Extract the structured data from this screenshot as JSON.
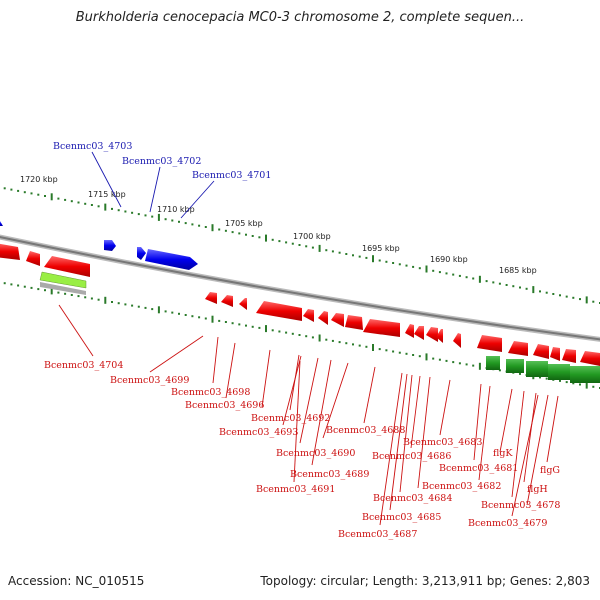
{
  "title": "Burkholderia cenocepacia MC0-3 chromosome 2, complete sequen...",
  "footer": {
    "accession": "Accession: NC_010515",
    "summary": "Topology: circular; Length: 3,213,911 bp; Genes: 2,803"
  },
  "colors": {
    "forward_gene": "#1a1aff",
    "reverse_gene": "#ff1a1a",
    "forward_label": "#1a1ab0",
    "reverse_label": "#cc1111",
    "rna_gene": "#2a9a2a",
    "highlight_gene": "#99ee44",
    "tick": "#2a7a2a",
    "backbone": "#888888"
  },
  "scale_labels": [
    "1720 kbp",
    "1715 kbp",
    "1710 kbp",
    "1705 kbp",
    "1700 kbp",
    "1695 kbp",
    "1690 kbp",
    "1685 kbp"
  ],
  "forward_labels": [
    "Bcenmc03_4703",
    "Bcenmc03_4702",
    "Bcenmc03_4701"
  ],
  "reverse_labels": [
    "Bcenmc03_4704",
    "Bcenmc03_4699",
    "Bcenmc03_4698",
    "Bcenmc03_4696",
    "Bcenmc03_4692",
    "Bcenmc03_4693",
    "Bcenmc03_4688",
    "Bcenmc03_4690",
    "Bcenmc03_4689",
    "Bcenmc03_4691",
    "Bcenmc03_4683",
    "Bcenmc03_4686",
    "Bcenmc03_4681",
    "flgK",
    "flgG",
    "Bcenmc03_4682",
    "flgH",
    "Bcenmc03_4684",
    "Bcenmc03_4678",
    "Bcenmc03_4685",
    "Bcenmc03_4679",
    "Bcenmc03_4687"
  ]
}
